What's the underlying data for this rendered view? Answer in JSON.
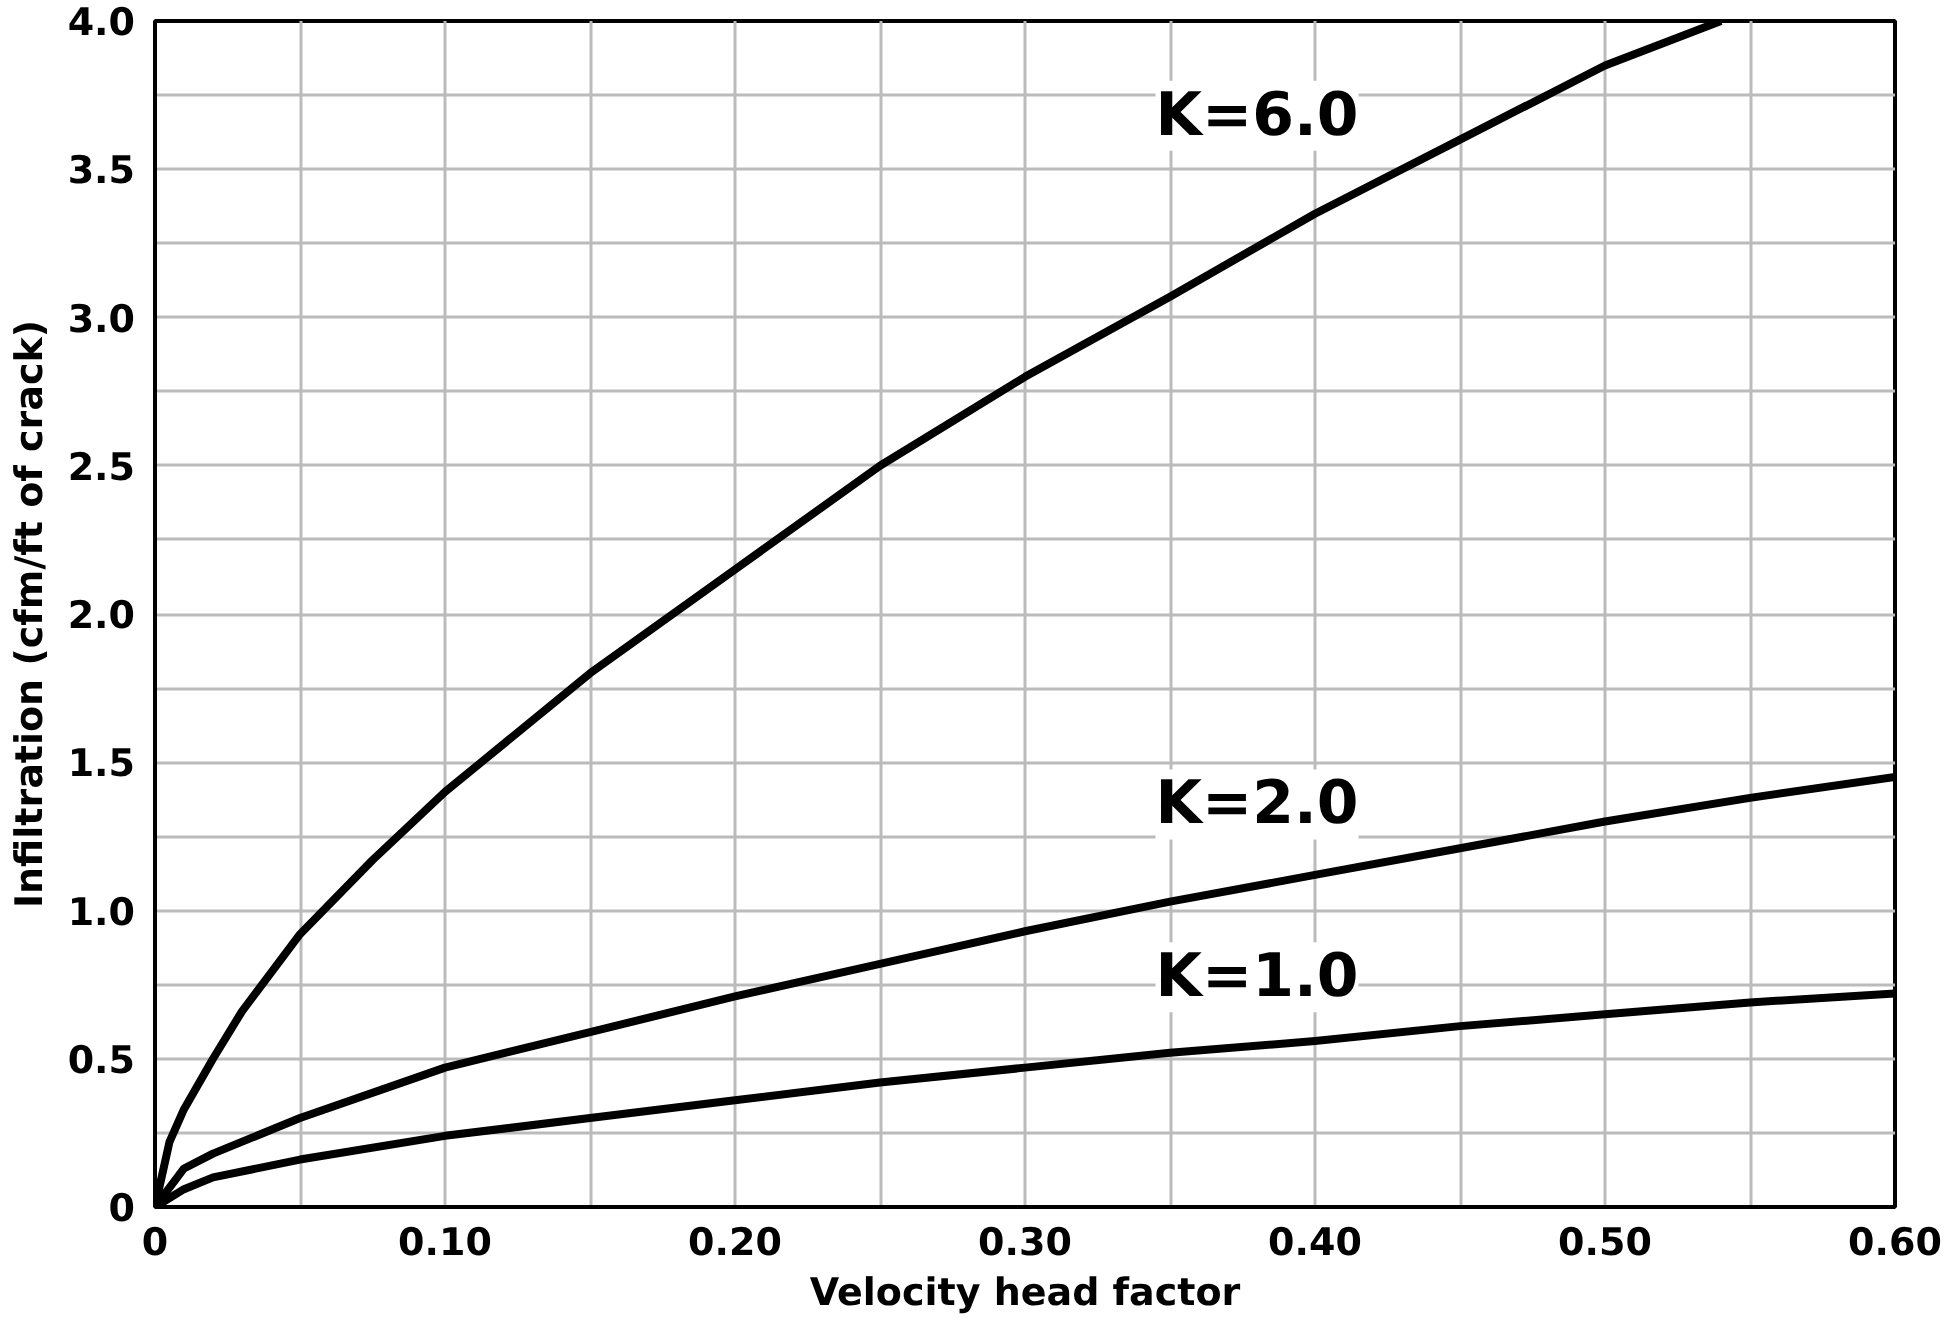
{
  "chart_data": {
    "type": "line",
    "xlabel": "Velocity head factor",
    "ylabel": "Infiltration (cfm/ft of crack)",
    "xlim": [
      0,
      0.6
    ],
    "ylim": [
      0,
      4.0
    ],
    "xticks": [
      {
        "value": 0,
        "label": "0"
      },
      {
        "value": 0.05,
        "label": null
      },
      {
        "value": 0.1,
        "label": "0.10"
      },
      {
        "value": 0.15,
        "label": null
      },
      {
        "value": 0.2,
        "label": "0.20"
      },
      {
        "value": 0.25,
        "label": null
      },
      {
        "value": 0.3,
        "label": "0.30"
      },
      {
        "value": 0.35,
        "label": null
      },
      {
        "value": 0.4,
        "label": "0.40"
      },
      {
        "value": 0.45,
        "label": null
      },
      {
        "value": 0.5,
        "label": "0.50"
      },
      {
        "value": 0.55,
        "label": null
      },
      {
        "value": 0.6,
        "label": "0.60"
      }
    ],
    "yticks": [
      0,
      {
        "value": 0.25,
        "label": null
      },
      0.5,
      {
        "value": 0.75,
        "label": null
      },
      {
        "value": 1,
        "label": "1.0"
      },
      {
        "value": 1.25,
        "label": null
      },
      1.5,
      {
        "value": 1.75,
        "label": null
      },
      {
        "value": 2,
        "label": "2.0"
      },
      {
        "value": 2.25,
        "label": null
      },
      2.5,
      {
        "value": 2.75,
        "label": null
      },
      {
        "value": 3,
        "label": "3.0"
      },
      {
        "value": 3.25,
        "label": null
      },
      3.5,
      {
        "value": 3.75,
        "label": null
      },
      {
        "value": 4,
        "label": "4.0"
      }
    ],
    "grid": true,
    "marker": "none",
    "line_style": "solid",
    "series": [
      {
        "name": "K=6.0",
        "color": "#000000",
        "x": [
          0,
          0.005,
          0.01,
          0.02,
          0.03,
          0.05,
          0.075,
          0.1,
          0.15,
          0.2,
          0.25,
          0.3,
          0.35,
          0.4,
          0.45,
          0.5,
          0.54
        ],
        "values": [
          0,
          0.22,
          0.33,
          0.5,
          0.66,
          0.92,
          1.17,
          1.4,
          1.8,
          2.15,
          2.5,
          2.8,
          3.07,
          3.35,
          3.6,
          3.85,
          4.0
        ]
      },
      {
        "name": "K=2.0",
        "color": "#000000",
        "x": [
          0,
          0.01,
          0.02,
          0.05,
          0.1,
          0.15,
          0.2,
          0.25,
          0.3,
          0.35,
          0.4,
          0.45,
          0.5,
          0.55,
          0.6
        ],
        "values": [
          0,
          0.13,
          0.18,
          0.3,
          0.47,
          0.59,
          0.71,
          0.82,
          0.93,
          1.03,
          1.12,
          1.21,
          1.3,
          1.38,
          1.45
        ]
      },
      {
        "name": "K=1.0",
        "color": "#000000",
        "x": [
          0,
          0.01,
          0.02,
          0.05,
          0.1,
          0.15,
          0.2,
          0.25,
          0.3,
          0.35,
          0.4,
          0.45,
          0.5,
          0.55,
          0.6
        ],
        "values": [
          0,
          0.06,
          0.1,
          0.16,
          0.24,
          0.3,
          0.36,
          0.42,
          0.47,
          0.52,
          0.56,
          0.61,
          0.65,
          0.69,
          0.72
        ]
      }
    ]
  }
}
